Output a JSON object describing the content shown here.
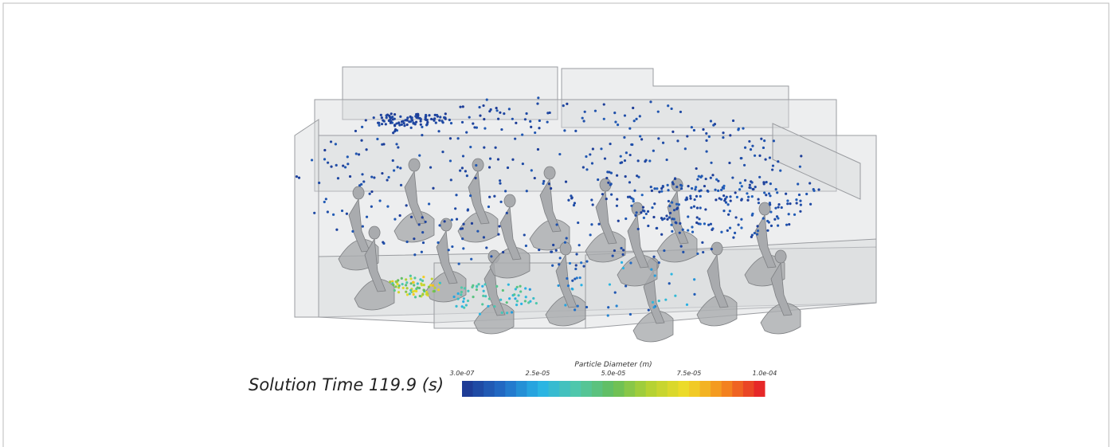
{
  "annotation": {
    "solution_time": "Solution Time 119.9 (s)"
  },
  "colorbar": {
    "title": "Particle Diameter (m)",
    "tick_labels": [
      "3.0e-07",
      "2.5e-05",
      "5.0e-05",
      "7.5e-05",
      "1.0e-04"
    ]
  }
}
